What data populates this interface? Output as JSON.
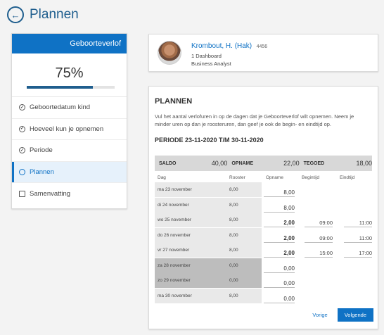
{
  "header": {
    "title": "Plannen",
    "back_icon": "←"
  },
  "sidebar": {
    "title": "Geboorteverlof",
    "progress_label": "75%",
    "progress": 0.75,
    "steps": [
      {
        "label": "Geboortedatum kind",
        "icon": "check-circle"
      },
      {
        "label": "Hoeveel kun je opnemen",
        "icon": "check-circle"
      },
      {
        "label": "Periode",
        "icon": "check-circle"
      },
      {
        "label": "Plannen",
        "icon": "circle"
      },
      {
        "label": "Samenvatting",
        "icon": "square"
      }
    ]
  },
  "profile": {
    "name": "Krombout, H. (Hak)",
    "id": "4456",
    "line1": "1 Dashboard",
    "line2": "Business Analyst"
  },
  "main": {
    "title": "PLANNEN",
    "intro": "Vul het aantal verlofuren in op de dagen dat je Geboorteverlof wilt opnemen. Neem je minder uren op dan je roosteruren, dan geef je ook de begin- en eindtijd op.",
    "periode": "PERIODE 23-11-2020 T/M 30-11-2020",
    "summary": {
      "saldo_label": "SALDO",
      "saldo_value": "40,00",
      "opname_label": "OPNAME",
      "opname_value": "22,00",
      "tegoed_label": "TEGOED",
      "tegoed_value": "18,00"
    },
    "columns": {
      "dag": "Dag",
      "rooster": "Rooster",
      "opname": "Opname",
      "begintijd": "Begintijd",
      "eindtijd": "Eindtijd"
    },
    "rows": [
      {
        "dag": "ma 23 november",
        "rooster": "8,00",
        "opname": "8,00",
        "begintijd": "",
        "eindtijd": ""
      },
      {
        "dag": "di 24 november",
        "rooster": "8,00",
        "opname": "8,00",
        "begintijd": "",
        "eindtijd": ""
      },
      {
        "dag": "wo 25 november",
        "rooster": "8,00",
        "opname": "2,00",
        "begintijd": "09:00",
        "eindtijd": "11:00"
      },
      {
        "dag": "do 26 november",
        "rooster": "8,00",
        "opname": "2,00",
        "begintijd": "09:00",
        "eindtijd": "11:00"
      },
      {
        "dag": "vr 27 november",
        "rooster": "8,00",
        "opname": "2,00",
        "begintijd": "15:00",
        "eindtijd": "17:00"
      },
      {
        "dag": "za 28 november",
        "rooster": "0,00",
        "opname": "0,00",
        "begintijd": "",
        "eindtijd": ""
      },
      {
        "dag": "zo 29 november",
        "rooster": "0,00",
        "opname": "0,00",
        "begintijd": "",
        "eindtijd": ""
      },
      {
        "dag": "ma 30 november",
        "rooster": "8,00",
        "opname": "0,00",
        "begintijd": "",
        "eindtijd": ""
      }
    ],
    "buttons": {
      "prev": "Vorige",
      "next": "Volgende"
    }
  }
}
